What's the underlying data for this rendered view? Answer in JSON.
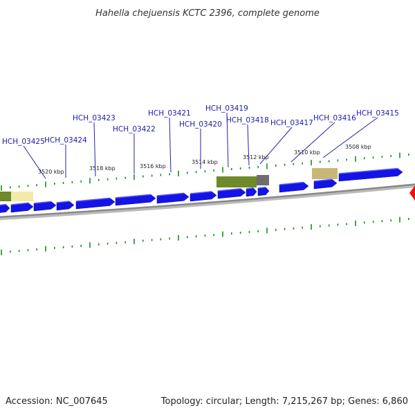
{
  "title": "Hahella chejuensis KCTC 2396, complete genome",
  "footer": {
    "accession_label": "Accession:",
    "accession": "NC_007645",
    "topology_label": "Topology:",
    "topology": "circular",
    "length_label": "Length:",
    "length": "7,215,267 bp",
    "genes_label": "Genes:",
    "genes": "6,860"
  },
  "scale_labels": [
    "3520 kbp",
    "3518 kbp",
    "3516 kbp",
    "3514 kbp",
    "3512 kbp",
    "3510 kbp",
    "3508 kbp"
  ],
  "gene_labels": [
    "HCH_03425",
    "HCH_03424",
    "HCH_03423",
    "HCH_03422",
    "HCH_03421",
    "HCH_03420",
    "HCH_03419",
    "HCH_03418",
    "HCH_03417",
    "HCH_03416",
    "HCH_03415"
  ],
  "colors": {
    "gene": "#1414e6",
    "gene_light": "#5a5aff",
    "backbone": "#888888",
    "tick": "#1a8a1a",
    "label": "#1a1aaa",
    "feature_olive": "#6e8a2a",
    "feature_grey": "#6e6e6e",
    "feature_tan": "#c8b878",
    "feature_yellow": "#f2eaa8",
    "marker": "#ee1111"
  }
}
